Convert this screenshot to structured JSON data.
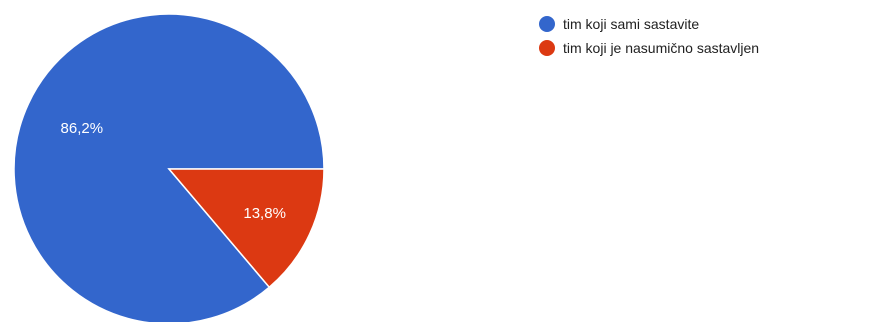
{
  "chart_data": {
    "type": "pie",
    "title": "",
    "legend_position": "top-right",
    "slices": [
      {
        "label": "tim koji sami sastavite",
        "value": 86.2,
        "value_label": "86,2%",
        "color": "#3366cc"
      },
      {
        "label": "tim koji je nasumično sastavljen",
        "value": 13.8,
        "value_label": "13,8%",
        "color": "#dc3912"
      }
    ]
  }
}
